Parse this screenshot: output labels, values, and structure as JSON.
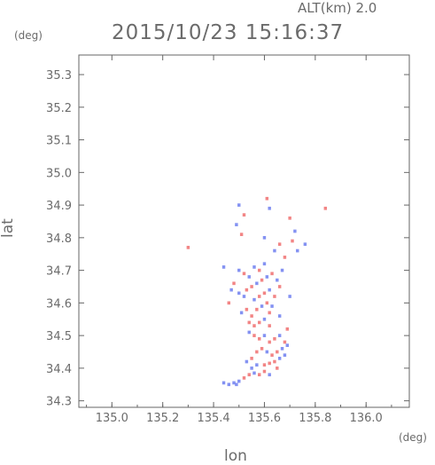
{
  "chart_data": {
    "type": "heatmap",
    "title": "2015/10/23 15:16:37",
    "subtitle": "ALT(km) 2.0",
    "xlabel": "lon",
    "ylabel": "lat",
    "x_unit": "(deg)",
    "y_unit": "(deg)",
    "xlim": [
      134.87,
      136.17
    ],
    "ylim": [
      34.28,
      35.36
    ],
    "x_ticks": [
      "135.0",
      "135.2",
      "135.4",
      "135.6",
      "135.8",
      "136.0"
    ],
    "y_ticks": [
      "34.3",
      "34.4",
      "34.5",
      "34.6",
      "34.7",
      "34.8",
      "34.9",
      "35.0",
      "35.1",
      "35.2",
      "35.3"
    ],
    "grid": false,
    "colors": {
      "positive": "#f07070",
      "negative": "#6f7ff0",
      "axis": "#666666"
    },
    "cells": [
      [
        135.48,
        34.355,
        -1
      ],
      [
        135.5,
        34.36,
        -1
      ],
      [
        135.49,
        34.35,
        -1
      ],
      [
        135.46,
        34.35,
        -1
      ],
      [
        135.44,
        34.355,
        -1
      ],
      [
        135.52,
        34.37,
        1
      ],
      [
        135.54,
        34.38,
        1
      ],
      [
        135.56,
        34.385,
        -1
      ],
      [
        135.58,
        34.38,
        1
      ],
      [
        135.6,
        34.39,
        1
      ],
      [
        135.55,
        34.4,
        -1
      ],
      [
        135.57,
        34.41,
        -1
      ],
      [
        135.6,
        34.41,
        1
      ],
      [
        135.62,
        34.415,
        1
      ],
      [
        135.64,
        34.42,
        1
      ],
      [
        135.66,
        34.43,
        -1
      ],
      [
        135.68,
        34.44,
        -1
      ],
      [
        135.67,
        34.46,
        -1
      ],
      [
        135.65,
        34.45,
        1
      ],
      [
        135.63,
        34.44,
        1
      ],
      [
        135.61,
        34.45,
        -1
      ],
      [
        135.59,
        34.46,
        1
      ],
      [
        135.62,
        34.48,
        1
      ],
      [
        135.64,
        34.49,
        1
      ],
      [
        135.66,
        34.5,
        -1
      ],
      [
        135.68,
        34.48,
        1
      ],
      [
        135.69,
        34.47,
        -1
      ],
      [
        135.6,
        34.5,
        -1
      ],
      [
        135.58,
        34.49,
        1
      ],
      [
        135.56,
        34.5,
        1
      ],
      [
        135.54,
        34.51,
        -1
      ],
      [
        135.56,
        34.53,
        1
      ],
      [
        135.58,
        34.54,
        1
      ],
      [
        135.6,
        34.55,
        -1
      ],
      [
        135.62,
        34.53,
        1
      ],
      [
        135.55,
        34.56,
        1
      ],
      [
        135.57,
        34.58,
        1
      ],
      [
        135.59,
        34.59,
        -1
      ],
      [
        135.61,
        34.6,
        1
      ],
      [
        135.63,
        34.59,
        -1
      ],
      [
        135.56,
        34.61,
        -1
      ],
      [
        135.58,
        34.62,
        1
      ],
      [
        135.6,
        34.63,
        1
      ],
      [
        135.62,
        34.64,
        -1
      ],
      [
        135.64,
        34.62,
        1
      ],
      [
        135.52,
        34.62,
        -1
      ],
      [
        135.5,
        34.63,
        -1
      ],
      [
        135.53,
        34.64,
        1
      ],
      [
        135.55,
        34.65,
        1
      ],
      [
        135.57,
        34.66,
        -1
      ],
      [
        135.59,
        34.67,
        1
      ],
      [
        135.61,
        34.68,
        -1
      ],
      [
        135.63,
        34.69,
        1
      ],
      [
        135.65,
        34.67,
        -1
      ],
      [
        135.54,
        34.68,
        -1
      ],
      [
        135.52,
        34.69,
        1
      ],
      [
        135.5,
        34.7,
        -1
      ],
      [
        135.56,
        34.71,
        -1
      ],
      [
        135.58,
        34.7,
        1
      ],
      [
        135.6,
        34.72,
        -1
      ],
      [
        135.48,
        34.66,
        1
      ],
      [
        135.47,
        34.64,
        -1
      ],
      [
        135.66,
        34.65,
        1
      ],
      [
        135.67,
        34.7,
        -1
      ],
      [
        135.53,
        34.58,
        1
      ],
      [
        135.51,
        34.57,
        -1
      ],
      [
        135.54,
        34.54,
        1
      ],
      [
        135.57,
        34.45,
        1
      ],
      [
        135.55,
        34.43,
        1
      ],
      [
        135.53,
        34.42,
        -1
      ],
      [
        135.62,
        34.38,
        -1
      ],
      [
        135.65,
        34.4,
        1
      ],
      [
        135.69,
        34.52,
        1
      ],
      [
        135.66,
        34.56,
        -1
      ],
      [
        135.62,
        34.57,
        1
      ],
      [
        135.5,
        34.9,
        -1
      ],
      [
        135.52,
        34.87,
        1
      ],
      [
        135.49,
        34.84,
        -1
      ],
      [
        135.51,
        34.81,
        1
      ],
      [
        135.61,
        34.92,
        1
      ],
      [
        135.62,
        34.89,
        -1
      ],
      [
        135.7,
        34.86,
        1
      ],
      [
        135.72,
        34.82,
        -1
      ],
      [
        135.71,
        34.79,
        1
      ],
      [
        135.73,
        34.76,
        -1
      ],
      [
        135.66,
        34.78,
        1
      ],
      [
        135.64,
        34.76,
        -1
      ],
      [
        135.76,
        34.78,
        -1
      ],
      [
        135.84,
        34.89,
        1
      ],
      [
        135.3,
        34.77,
        1
      ],
      [
        135.6,
        34.8,
        -1
      ],
      [
        135.68,
        34.74,
        1
      ],
      [
        135.46,
        34.6,
        1
      ],
      [
        135.44,
        34.71,
        -1
      ],
      [
        135.7,
        34.62,
        -1
      ]
    ]
  }
}
